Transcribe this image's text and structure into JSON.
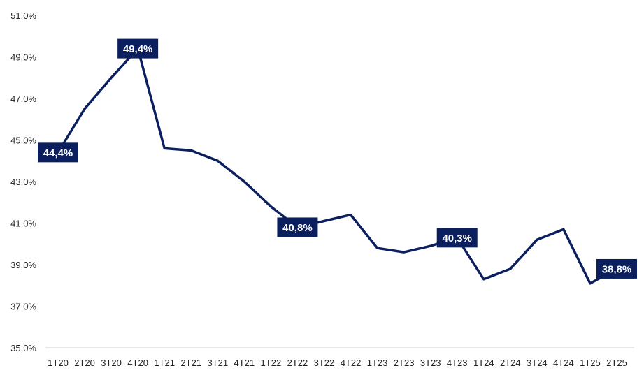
{
  "chart_data": {
    "type": "line",
    "title": "",
    "xlabel": "",
    "ylabel": "",
    "grid": false,
    "legend": "none",
    "line_color": "#0b1f5e",
    "label_bg_color": "#0b1f5e",
    "label_text_color": "#ffffff",
    "ylim": [
      35.0,
      51.0
    ],
    "y_ticks": [
      35.0,
      37.0,
      39.0,
      41.0,
      43.0,
      45.0,
      47.0,
      49.0,
      51.0
    ],
    "y_tick_labels": [
      "35,0%",
      "37,0%",
      "39,0%",
      "41,0%",
      "43,0%",
      "45,0%",
      "47,0%",
      "49,0%",
      "51,0%"
    ],
    "categories": [
      "1T20",
      "2T20",
      "3T20",
      "4T20",
      "1T21",
      "2T21",
      "3T21",
      "4T21",
      "1T22",
      "2T22",
      "3T22",
      "4T22",
      "1T23",
      "2T23",
      "3T23",
      "4T23",
      "1T24",
      "2T24",
      "3T24",
      "4T24",
      "1T25",
      "2T25"
    ],
    "series": [
      {
        "values": [
          44.4,
          46.5,
          48.0,
          49.4,
          44.6,
          44.5,
          44.0,
          43.0,
          41.8,
          40.8,
          41.1,
          41.4,
          39.8,
          39.6,
          39.9,
          40.3,
          38.3,
          38.8,
          40.2,
          40.7,
          38.1,
          38.8
        ]
      }
    ],
    "data_labels": [
      {
        "index": 0,
        "text": "44,4%"
      },
      {
        "index": 3,
        "text": "49,4%"
      },
      {
        "index": 9,
        "text": "40,8%"
      },
      {
        "index": 15,
        "text": "40,3%"
      },
      {
        "index": 21,
        "text": "38,8%"
      }
    ]
  }
}
